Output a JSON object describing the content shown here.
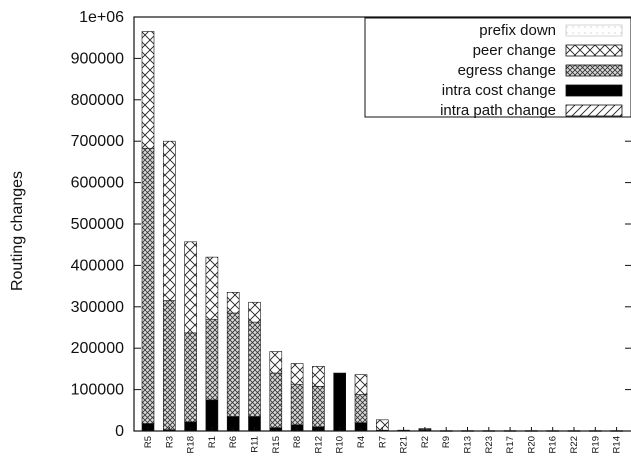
{
  "chart_data": {
    "type": "bar",
    "stacked": true,
    "title": "",
    "xlabel": "",
    "ylabel": "Routing changes",
    "ylim": [
      0,
      1000000
    ],
    "yticks": [
      "0",
      "100000",
      "200000",
      "300000",
      "400000",
      "500000",
      "600000",
      "700000",
      "800000",
      "900000",
      "1e+06"
    ],
    "legend_position": "top-right",
    "grid": false,
    "categories": [
      "R5",
      "R3",
      "R18",
      "R1",
      "R6",
      "R11",
      "R15",
      "R8",
      "R12",
      "R10",
      "R4",
      "R7",
      "R21",
      "R2",
      "R9",
      "R13",
      "R23",
      "R17",
      "R20",
      "R16",
      "R22",
      "R19",
      "R14"
    ],
    "series": [
      {
        "name": "intra path change",
        "pattern": "diagonal-hatch",
        "values": [
          0,
          0,
          0,
          0,
          0,
          0,
          0,
          0,
          0,
          0,
          0,
          0,
          0,
          0,
          0,
          0,
          0,
          0,
          0,
          0,
          0,
          0,
          0
        ]
      },
      {
        "name": "intra cost change",
        "pattern": "solid-black",
        "values": [
          18000,
          3000,
          22000,
          75000,
          35000,
          35000,
          8000,
          15000,
          10000,
          140000,
          20000,
          2000,
          0,
          2000,
          0,
          0,
          0,
          0,
          0,
          0,
          0,
          0,
          0
        ]
      },
      {
        "name": "egress change",
        "pattern": "dense-crosshatch",
        "values": [
          665000,
          312000,
          215000,
          195000,
          250000,
          228000,
          132000,
          98000,
          98000,
          0,
          68000,
          0,
          0,
          2000,
          0,
          0,
          0,
          0,
          0,
          0,
          0,
          0,
          0
        ]
      },
      {
        "name": "peer change",
        "pattern": "open-crosshatch",
        "values": [
          282000,
          385000,
          220000,
          150000,
          50000,
          48000,
          52000,
          50000,
          48000,
          0,
          48000,
          25000,
          2000,
          2000,
          1000,
          1000,
          1000,
          1000,
          1000,
          1000,
          1000,
          1000,
          1000
        ]
      },
      {
        "name": "prefix down",
        "pattern": "light-dotted",
        "values": [
          0,
          0,
          0,
          0,
          0,
          0,
          0,
          0,
          0,
          0,
          0,
          0,
          0,
          0,
          0,
          0,
          0,
          0,
          0,
          0,
          0,
          0,
          0
        ]
      }
    ]
  }
}
